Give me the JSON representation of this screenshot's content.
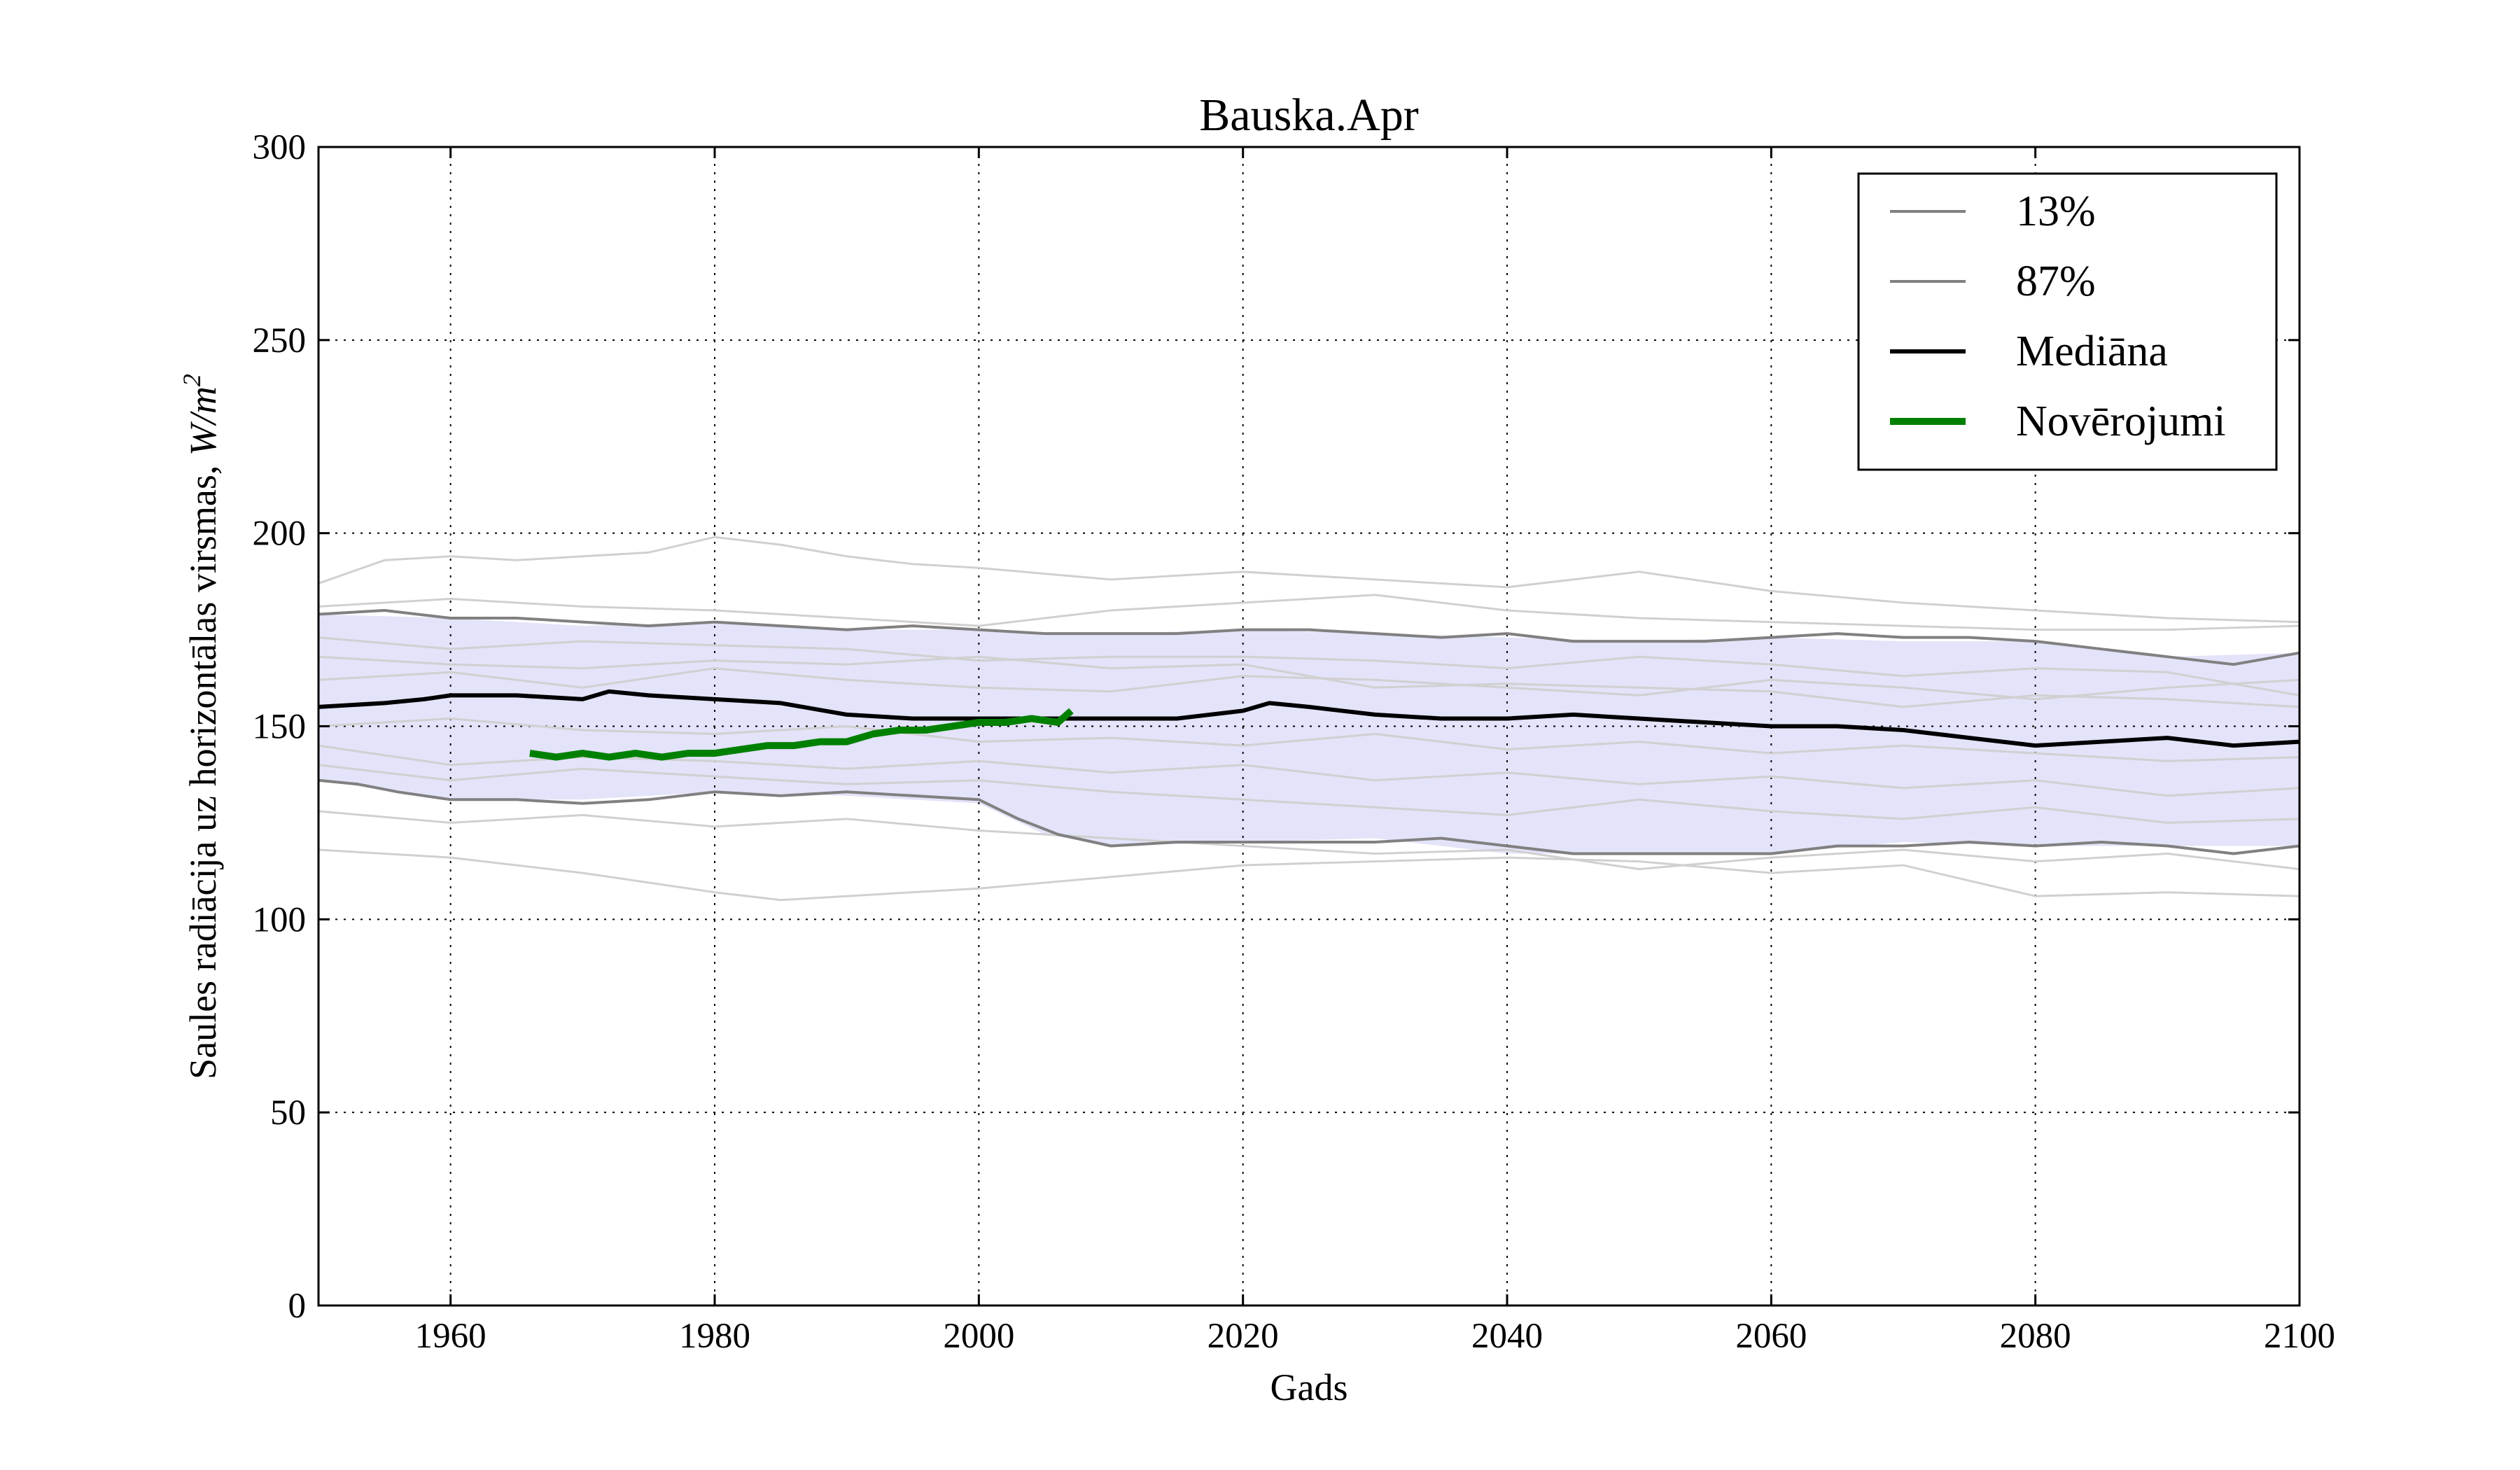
{
  "chart_data": {
    "type": "line",
    "title": "Bauska.Apr",
    "xlabel": "Gads",
    "ylabel_text": "Saules radiācija uz horizontālas virsmas, ",
    "ylabel_unit_base": "W/m",
    "ylabel_unit_exp": "2",
    "xlim": [
      1950,
      2100
    ],
    "ylim": [
      0,
      300
    ],
    "x_ticks": [
      1960,
      1980,
      2000,
      2020,
      2040,
      2060,
      2080,
      2100
    ],
    "y_ticks": [
      0,
      50,
      100,
      150,
      200,
      250,
      300
    ],
    "x_tick_labels": [
      "1960",
      "1980",
      "2000",
      "2020",
      "2040",
      "2060",
      "2080",
      "2100"
    ],
    "y_tick_labels": [
      "0",
      "50",
      "100",
      "150",
      "200",
      "250",
      "300"
    ],
    "grid": true,
    "legend_position": "top-right",
    "colors": {
      "band_fill": "#e3e3fa",
      "ensemble": "#d0d0d0",
      "percentile": "#808080",
      "median": "#000000",
      "observations": "#008000"
    },
    "band": {
      "x": [
        1950,
        1960,
        1970,
        1980,
        1990,
        2000,
        2005,
        2010,
        2020,
        2030,
        2040,
        2050,
        2060,
        2070,
        2080,
        2090,
        2100
      ],
      "upper": [
        179,
        178,
        176,
        177,
        175,
        175,
        174,
        174,
        175,
        174,
        173,
        172,
        173,
        172,
        172,
        168,
        169
      ],
      "lower": [
        136,
        131,
        131,
        133,
        132,
        130,
        122,
        119,
        120,
        121,
        117,
        117,
        117,
        120,
        119,
        119,
        119
      ]
    },
    "series": [
      {
        "name": "13%",
        "x": [
          1950,
          1953,
          1956,
          1960,
          1965,
          1970,
          1975,
          1980,
          1985,
          1990,
          1995,
          2000,
          2003,
          2006,
          2010,
          2015,
          2020,
          2025,
          2030,
          2035,
          2040,
          2045,
          2050,
          2055,
          2060,
          2065,
          2070,
          2075,
          2080,
          2085,
          2090,
          2095,
          2100
        ],
        "y": [
          136,
          135,
          133,
          131,
          131,
          130,
          131,
          133,
          132,
          133,
          132,
          131,
          126,
          122,
          119,
          120,
          120,
          120,
          120,
          121,
          119,
          117,
          117,
          117,
          117,
          119,
          119,
          120,
          119,
          120,
          119,
          117,
          119
        ]
      },
      {
        "name": "87%",
        "x": [
          1950,
          1955,
          1960,
          1965,
          1970,
          1975,
          1980,
          1985,
          1990,
          1995,
          2000,
          2005,
          2010,
          2015,
          2020,
          2025,
          2030,
          2035,
          2040,
          2045,
          2050,
          2055,
          2060,
          2065,
          2070,
          2075,
          2080,
          2085,
          2090,
          2095,
          2100
        ],
        "y": [
          179,
          180,
          178,
          178,
          177,
          176,
          177,
          176,
          175,
          176,
          175,
          174,
          174,
          174,
          175,
          175,
          174,
          173,
          174,
          172,
          172,
          172,
          173,
          174,
          173,
          173,
          172,
          170,
          168,
          166,
          169
        ]
      },
      {
        "name": "Mediāna",
        "x": [
          1950,
          1955,
          1958,
          1960,
          1965,
          1970,
          1972,
          1975,
          1980,
          1985,
          1990,
          1995,
          2000,
          2005,
          2010,
          2015,
          2020,
          2022,
          2025,
          2030,
          2035,
          2040,
          2045,
          2050,
          2055,
          2060,
          2065,
          2070,
          2075,
          2080,
          2085,
          2090,
          2095,
          2100
        ],
        "y": [
          155,
          156,
          157,
          158,
          158,
          157,
          159,
          158,
          157,
          156,
          153,
          152,
          152,
          152,
          152,
          152,
          154,
          156,
          155,
          153,
          152,
          152,
          153,
          152,
          151,
          150,
          150,
          149,
          147,
          145,
          146,
          147,
          145,
          146
        ]
      },
      {
        "name": "Novērojumi",
        "x": [
          1966,
          1968,
          1970,
          1972,
          1974,
          1976,
          1978,
          1980,
          1982,
          1984,
          1986,
          1988,
          1990,
          1992,
          1994,
          1996,
          1998,
          2000,
          2002,
          2004,
          2006,
          2007
        ],
        "y": [
          143,
          142,
          143,
          142,
          143,
          142,
          143,
          143,
          144,
          145,
          145,
          146,
          146,
          148,
          149,
          149,
          150,
          151,
          151,
          152,
          151,
          154
        ]
      }
    ],
    "ensemble_members": [
      {
        "x": [
          1950,
          1955,
          1960,
          1965,
          1970,
          1975,
          1980,
          1985,
          1990,
          1995,
          2000,
          2010,
          2020,
          2030,
          2040,
          2050,
          2060,
          2070,
          2080,
          2090,
          2100
        ],
        "y": [
          187,
          193,
          194,
          193,
          194,
          195,
          199,
          197,
          194,
          192,
          191,
          188,
          190,
          188,
          186,
          190,
          185,
          182,
          180,
          178,
          177
        ]
      },
      {
        "x": [
          1950,
          1960,
          1970,
          1980,
          1990,
          2000,
          2010,
          2020,
          2030,
          2040,
          2050,
          2060,
          2070,
          2080,
          2090,
          2100
        ],
        "y": [
          181,
          183,
          181,
          180,
          178,
          176,
          180,
          182,
          184,
          180,
          178,
          177,
          176,
          175,
          175,
          176
        ]
      },
      {
        "x": [
          1950,
          1960,
          1970,
          1980,
          1990,
          2000,
          2010,
          2020,
          2030,
          2040,
          2050,
          2060,
          2070,
          2080,
          2090,
          2100
        ],
        "y": [
          173,
          170,
          172,
          171,
          170,
          167,
          168,
          168,
          167,
          165,
          168,
          166,
          163,
          165,
          164,
          158
        ]
      },
      {
        "x": [
          1950,
          1960,
          1970,
          1980,
          1990,
          2000,
          2010,
          2020,
          2030,
          2040,
          2050,
          2060,
          2070,
          2080,
          2090,
          2100
        ],
        "y": [
          168,
          166,
          165,
          167,
          166,
          168,
          165,
          166,
          160,
          161,
          160,
          159,
          155,
          158,
          157,
          155
        ]
      },
      {
        "x": [
          1950,
          1960,
          1970,
          1980,
          1990,
          2000,
          2010,
          2020,
          2030,
          2040,
          2050,
          2060,
          2070,
          2080,
          2090,
          2100
        ],
        "y": [
          162,
          164,
          160,
          165,
          162,
          160,
          159,
          163,
          162,
          160,
          158,
          162,
          160,
          157,
          160,
          162
        ]
      },
      {
        "x": [
          1950,
          1960,
          1970,
          1980,
          1990,
          2000,
          2010,
          2020,
          2030,
          2040,
          2050,
          2060,
          2070,
          2080,
          2090,
          2100
        ],
        "y": [
          150,
          152,
          149,
          148,
          150,
          146,
          147,
          145,
          148,
          144,
          146,
          143,
          145,
          143,
          141,
          142
        ]
      },
      {
        "x": [
          1950,
          1960,
          1970,
          1980,
          1990,
          2000,
          2010,
          2020,
          2030,
          2040,
          2050,
          2060,
          2070,
          2080,
          2090,
          2100
        ],
        "y": [
          145,
          140,
          142,
          141,
          139,
          141,
          138,
          140,
          136,
          138,
          135,
          137,
          134,
          136,
          132,
          134
        ]
      },
      {
        "x": [
          1950,
          1960,
          1970,
          1980,
          1990,
          2000,
          2010,
          2020,
          2030,
          2040,
          2050,
          2060,
          2070,
          2080,
          2090,
          2100
        ],
        "y": [
          140,
          136,
          139,
          137,
          135,
          136,
          133,
          131,
          129,
          127,
          131,
          128,
          126,
          129,
          125,
          126
        ]
      },
      {
        "x": [
          1950,
          1960,
          1970,
          1980,
          1990,
          2000,
          2010,
          2020,
          2030,
          2040,
          2050,
          2060,
          2070,
          2080,
          2090,
          2100
        ],
        "y": [
          128,
          125,
          127,
          124,
          126,
          123,
          121,
          119,
          117,
          118,
          113,
          116,
          118,
          115,
          117,
          113
        ]
      },
      {
        "x": [
          1950,
          1960,
          1970,
          1980,
          1985,
          1990,
          2000,
          2010,
          2020,
          2030,
          2040,
          2050,
          2060,
          2070,
          2080,
          2090,
          2100
        ],
        "y": [
          118,
          116,
          112,
          107,
          105,
          106,
          108,
          111,
          114,
          115,
          116,
          115,
          112,
          114,
          106,
          107,
          106
        ]
      }
    ]
  }
}
